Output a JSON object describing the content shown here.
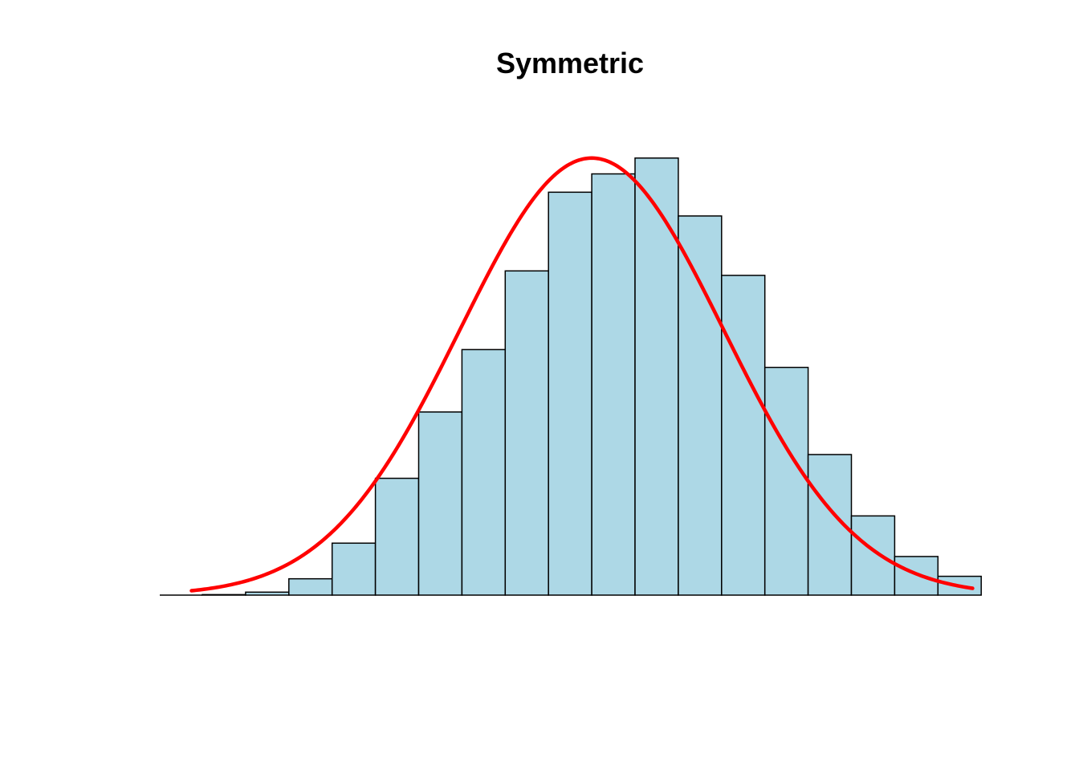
{
  "chart_data": {
    "type": "bar",
    "subtype": "histogram",
    "title": "Symmetric",
    "xlabel": "",
    "ylabel": "",
    "axes_visible": false,
    "grid": false,
    "bins": 18,
    "counts": [
      1,
      6,
      33,
      105,
      236,
      370,
      496,
      655,
      814,
      851,
      883,
      766,
      646,
      460,
      284,
      160,
      78,
      38
    ],
    "ylim": [
      0,
      920
    ],
    "density_curve": {
      "mean": 9.0,
      "sd": 3.05,
      "peak": 883
    },
    "colors": {
      "bar_fill": "#ADD8E6",
      "bar_border": "#000000",
      "curve": "#FF0000"
    }
  }
}
